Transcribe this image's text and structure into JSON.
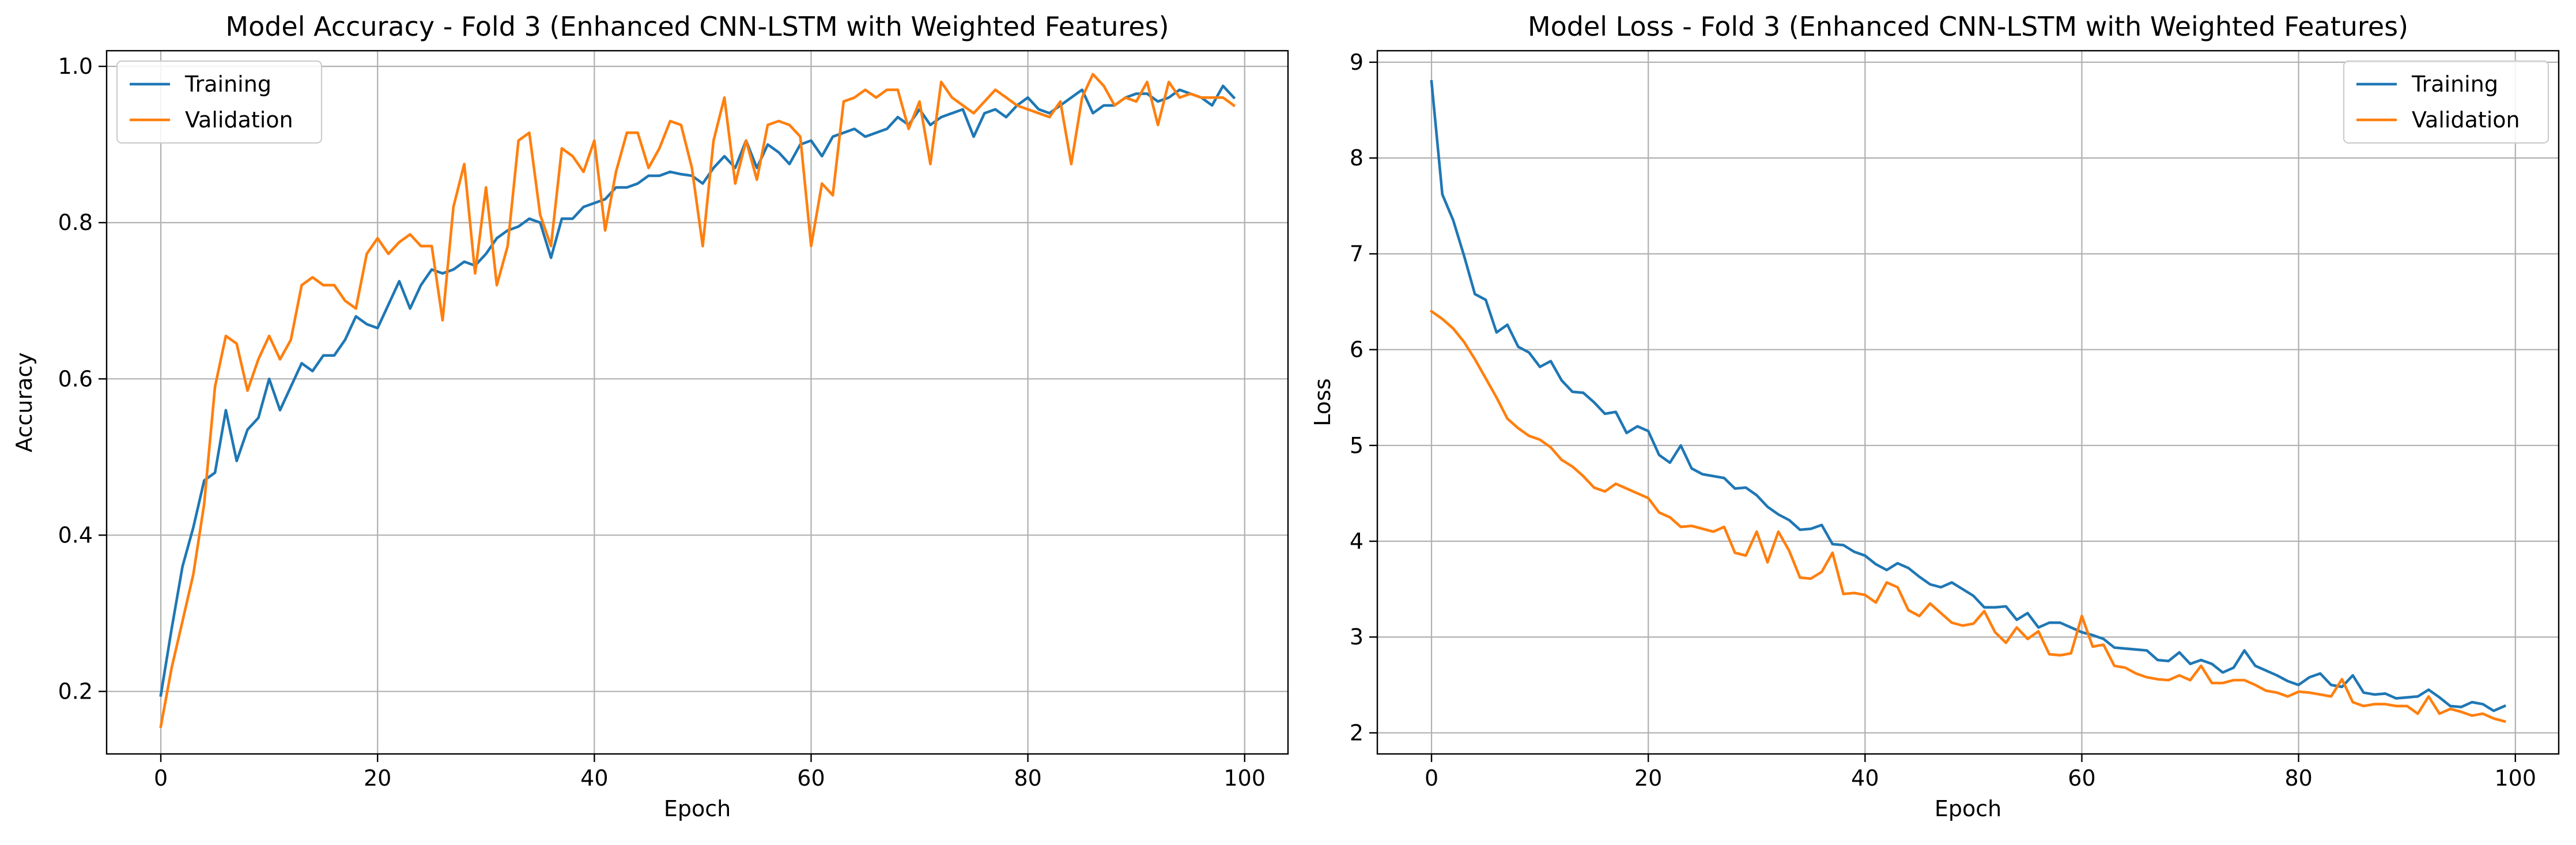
{
  "colors": {
    "training": "#1f77b4",
    "validation": "#ff7f0e",
    "grid": "#b0b0b0"
  },
  "chart_data": [
    {
      "type": "line",
      "title": "Model Accuracy - Fold 3 (Enhanced CNN-LSTM with Weighted Features)",
      "xlabel": "Epoch",
      "ylabel": "Accuracy",
      "xlim": [
        -5,
        104
      ],
      "ylim": [
        0.12,
        1.02
      ],
      "xticks": [
        0,
        20,
        40,
        60,
        80,
        100
      ],
      "yticks": [
        0.2,
        0.4,
        0.6,
        0.8,
        1.0
      ],
      "ytick_labels": [
        "0.2",
        "0.4",
        "0.6",
        "0.8",
        "1.0"
      ],
      "grid": true,
      "legend": "top-left",
      "series": [
        {
          "name": "Training",
          "color": "#1f77b4",
          "values": [
            0.195,
            0.28,
            0.36,
            0.41,
            0.47,
            0.48,
            0.56,
            0.495,
            0.535,
            0.55,
            0.6,
            0.56,
            0.59,
            0.62,
            0.61,
            0.63,
            0.63,
            0.65,
            0.68,
            0.67,
            0.665,
            0.695,
            0.725,
            0.69,
            0.72,
            0.74,
            0.735,
            0.74,
            0.75,
            0.745,
            0.76,
            0.78,
            0.79,
            0.795,
            0.805,
            0.8,
            0.755,
            0.805,
            0.805,
            0.82,
            0.825,
            0.83,
            0.845,
            0.845,
            0.85,
            0.86,
            0.86,
            0.865,
            0.862,
            0.86,
            0.85,
            0.87,
            0.885,
            0.87,
            0.905,
            0.87,
            0.9,
            0.89,
            0.875,
            0.9,
            0.905,
            0.885,
            0.91,
            0.915,
            0.92,
            0.91,
            0.915,
            0.92,
            0.935,
            0.925,
            0.945,
            0.925,
            0.935,
            0.94,
            0.945,
            0.91,
            0.94,
            0.945,
            0.935,
            0.95,
            0.96,
            0.945,
            0.94,
            0.95,
            0.96,
            0.97,
            0.94,
            0.95,
            0.95,
            0.96,
            0.965,
            0.965,
            0.955,
            0.96,
            0.97,
            0.965,
            0.96,
            0.95,
            0.975,
            0.96
          ]
        },
        {
          "name": "Validation",
          "color": "#ff7f0e",
          "values": [
            0.155,
            0.23,
            0.29,
            0.35,
            0.44,
            0.59,
            0.655,
            0.645,
            0.585,
            0.625,
            0.655,
            0.625,
            0.65,
            0.72,
            0.73,
            0.72,
            0.72,
            0.7,
            0.69,
            0.76,
            0.78,
            0.76,
            0.775,
            0.785,
            0.77,
            0.77,
            0.675,
            0.82,
            0.875,
            0.735,
            0.845,
            0.72,
            0.77,
            0.905,
            0.915,
            0.81,
            0.77,
            0.895,
            0.885,
            0.865,
            0.905,
            0.79,
            0.865,
            0.915,
            0.915,
            0.87,
            0.895,
            0.93,
            0.925,
            0.87,
            0.77,
            0.905,
            0.96,
            0.85,
            0.905,
            0.855,
            0.925,
            0.93,
            0.925,
            0.91,
            0.77,
            0.85,
            0.835,
            0.955,
            0.96,
            0.97,
            0.96,
            0.97,
            0.97,
            0.92,
            0.955,
            0.875,
            0.98,
            0.96,
            0.95,
            0.94,
            0.955,
            0.97,
            0.96,
            0.95,
            0.945,
            0.94,
            0.935,
            0.955,
            0.875,
            0.96,
            0.99,
            0.975,
            0.95,
            0.96,
            0.955,
            0.98,
            0.925,
            0.98,
            0.96,
            0.965,
            0.96,
            0.96,
            0.96,
            0.95
          ]
        }
      ]
    },
    {
      "type": "line",
      "title": "Model Loss - Fold 3 (Enhanced CNN-LSTM with Weighted Features)",
      "xlabel": "Epoch",
      "ylabel": "Loss",
      "xlim": [
        -5,
        104
      ],
      "ylim": [
        1.78,
        9.12
      ],
      "xticks": [
        0,
        20,
        40,
        60,
        80,
        100
      ],
      "yticks": [
        2,
        3,
        4,
        5,
        6,
        7,
        8,
        9
      ],
      "ytick_labels": [
        "2",
        "3",
        "4",
        "5",
        "6",
        "7",
        "8",
        "9"
      ],
      "grid": true,
      "legend": "top-right",
      "series": [
        {
          "name": "Training",
          "color": "#1f77b4",
          "values": [
            8.8,
            7.62,
            7.35,
            6.98,
            6.58,
            6.52,
            6.18,
            6.26,
            6.03,
            5.97,
            5.82,
            5.88,
            5.68,
            5.56,
            5.55,
            5.45,
            5.33,
            5.35,
            5.13,
            5.2,
            5.15,
            4.9,
            4.82,
            5.0,
            4.76,
            4.7,
            4.68,
            4.66,
            4.55,
            4.56,
            4.48,
            4.36,
            4.28,
            4.22,
            4.12,
            4.13,
            4.17,
            3.97,
            3.96,
            3.89,
            3.85,
            3.76,
            3.7,
            3.77,
            3.72,
            3.63,
            3.55,
            3.52,
            3.57,
            3.5,
            3.43,
            3.31,
            3.31,
            3.32,
            3.18,
            3.25,
            3.1,
            3.15,
            3.15,
            3.1,
            3.05,
            3.02,
            2.98,
            2.89,
            2.88,
            2.87,
            2.86,
            2.76,
            2.75,
            2.84,
            2.72,
            2.76,
            2.72,
            2.63,
            2.68,
            2.86,
            2.7,
            2.65,
            2.6,
            2.54,
            2.5,
            2.58,
            2.62,
            2.5,
            2.48,
            2.6,
            2.42,
            2.4,
            2.41,
            2.36,
            2.37,
            2.38,
            2.45,
            2.37,
            2.28,
            2.27,
            2.32,
            2.3,
            2.23,
            2.28
          ]
        },
        {
          "name": "Validation",
          "color": "#ff7f0e",
          "values": [
            6.4,
            6.32,
            6.22,
            6.08,
            5.9,
            5.7,
            5.5,
            5.28,
            5.18,
            5.1,
            5.06,
            4.98,
            4.85,
            4.78,
            4.68,
            4.56,
            4.52,
            4.6,
            4.55,
            4.5,
            4.45,
            4.3,
            4.25,
            4.15,
            4.16,
            4.13,
            4.1,
            4.15,
            3.88,
            3.85,
            4.1,
            3.78,
            4.1,
            3.9,
            3.62,
            3.61,
            3.68,
            3.88,
            3.45,
            3.46,
            3.44,
            3.36,
            3.57,
            3.52,
            3.28,
            3.22,
            3.35,
            3.25,
            3.15,
            3.12,
            3.14,
            3.27,
            3.05,
            2.94,
            3.1,
            2.98,
            3.06,
            2.82,
            2.81,
            2.83,
            3.22,
            2.9,
            2.92,
            2.7,
            2.68,
            2.62,
            2.58,
            2.56,
            2.55,
            2.6,
            2.55,
            2.7,
            2.52,
            2.52,
            2.55,
            2.55,
            2.5,
            2.44,
            2.42,
            2.38,
            2.43,
            2.42,
            2.4,
            2.38,
            2.56,
            2.32,
            2.28,
            2.3,
            2.3,
            2.28,
            2.28,
            2.2,
            2.38,
            2.2,
            2.25,
            2.22,
            2.18,
            2.2,
            2.15,
            2.12
          ]
        }
      ]
    }
  ]
}
